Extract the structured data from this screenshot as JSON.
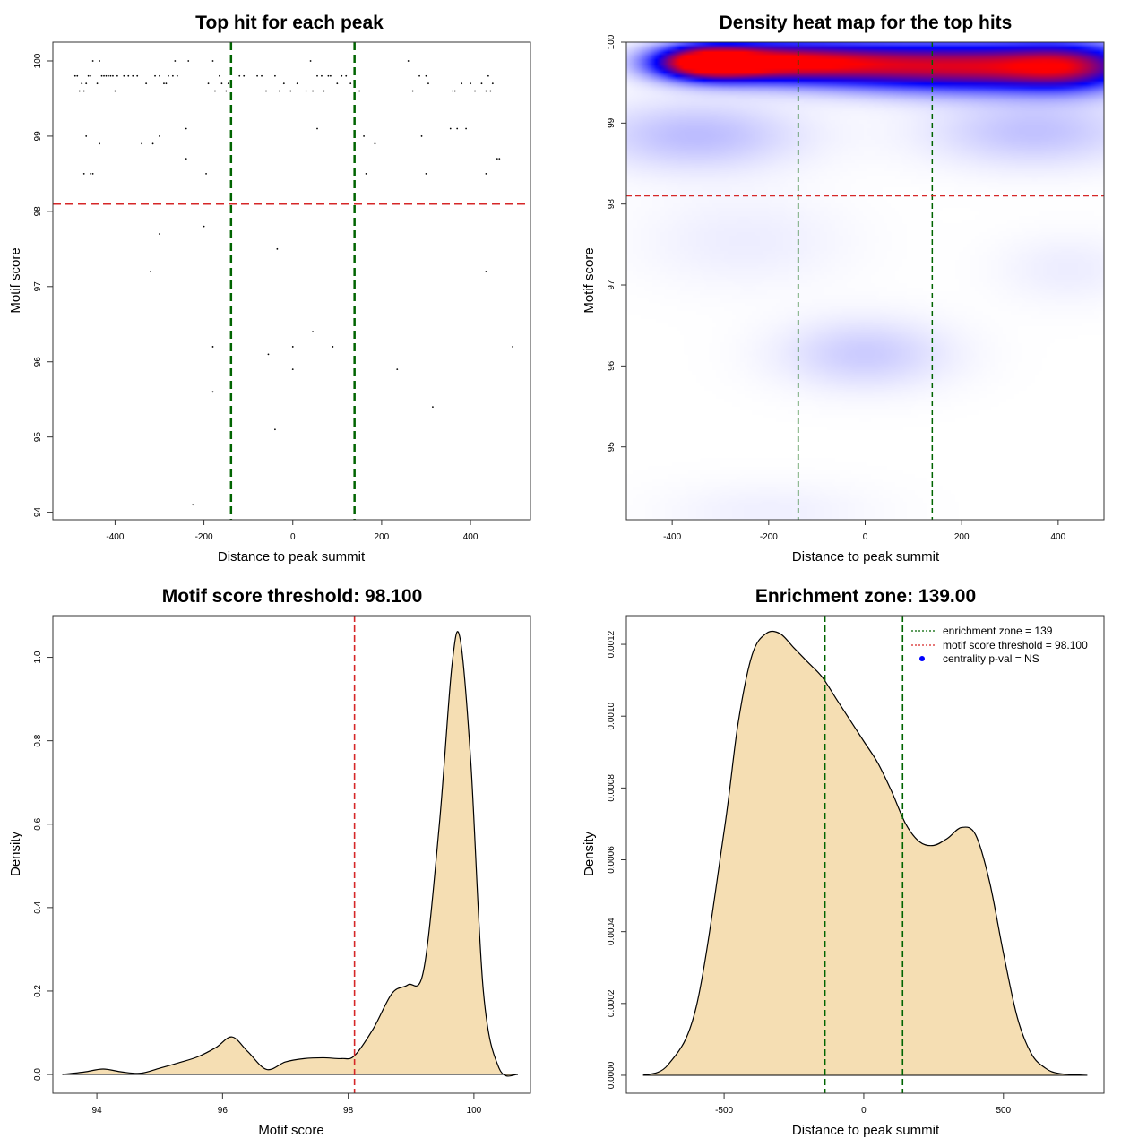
{
  "colors": {
    "threshold": "#d62728",
    "zone": "#006400",
    "fill": "#f5deb3",
    "heat_low": "#ffffff",
    "heat_mid": "#0000ff",
    "heat_high": "#ff0000",
    "pval_dot": "#0000ff"
  },
  "chart_data": [
    {
      "id": "scatter",
      "type": "scatter",
      "title": "Top hit for each peak",
      "xlabel": "Distance to peak summit",
      "ylabel": "Motif score",
      "xlim": [
        -540,
        535
      ],
      "ylim": [
        93.9,
        100.25
      ],
      "xticks": [
        -400,
        -200,
        0,
        200,
        400
      ],
      "yticks": [
        94,
        95,
        96,
        97,
        98,
        99,
        100
      ],
      "zone": [
        -139,
        139
      ],
      "threshold": 98.1,
      "points": [
        [
          -490,
          99.8
        ],
        [
          -485,
          99.8
        ],
        [
          -480,
          99.6
        ],
        [
          -475,
          99.7
        ],
        [
          -470,
          99.6
        ],
        [
          -465,
          99.7
        ],
        [
          -460,
          99.8
        ],
        [
          -455,
          99.8
        ],
        [
          -450,
          100.0
        ],
        [
          -440,
          99.7
        ],
        [
          -435,
          100.0
        ],
        [
          -430,
          99.8
        ],
        [
          -425,
          99.8
        ],
        [
          -420,
          99.8
        ],
        [
          -415,
          99.8
        ],
        [
          -410,
          99.8
        ],
        [
          -405,
          99.8
        ],
        [
          -400,
          99.6
        ],
        [
          -395,
          99.8
        ],
        [
          -380,
          99.8
        ],
        [
          -370,
          99.8
        ],
        [
          -360,
          99.8
        ],
        [
          -350,
          99.8
        ],
        [
          -330,
          99.7
        ],
        [
          -310,
          99.8
        ],
        [
          -300,
          99.8
        ],
        [
          -290,
          99.7
        ],
        [
          -285,
          99.7
        ],
        [
          -280,
          99.8
        ],
        [
          -270,
          99.8
        ],
        [
          -265,
          100.0
        ],
        [
          -260,
          99.8
        ],
        [
          -235,
          100.0
        ],
        [
          -190,
          99.7
        ],
        [
          -180,
          100.0
        ],
        [
          -175,
          99.6
        ],
        [
          -165,
          99.8
        ],
        [
          -160,
          99.7
        ],
        [
          -150,
          99.6
        ],
        [
          -145,
          99.7
        ],
        [
          -120,
          99.8
        ],
        [
          -110,
          99.8
        ],
        [
          -80,
          99.8
        ],
        [
          -70,
          99.8
        ],
        [
          -60,
          99.6
        ],
        [
          -40,
          99.8
        ],
        [
          -30,
          99.6
        ],
        [
          -20,
          99.7
        ],
        [
          -5,
          99.6
        ],
        [
          10,
          99.7
        ],
        [
          30,
          99.6
        ],
        [
          40,
          100.0
        ],
        [
          45,
          99.6
        ],
        [
          55,
          99.8
        ],
        [
          65,
          99.8
        ],
        [
          70,
          99.6
        ],
        [
          80,
          99.8
        ],
        [
          85,
          99.8
        ],
        [
          100,
          99.7
        ],
        [
          110,
          99.8
        ],
        [
          120,
          99.8
        ],
        [
          130,
          99.7
        ],
        [
          150,
          99.6
        ],
        [
          260,
          100.0
        ],
        [
          270,
          99.6
        ],
        [
          285,
          99.8
        ],
        [
          300,
          99.8
        ],
        [
          305,
          99.7
        ],
        [
          360,
          99.6
        ],
        [
          365,
          99.6
        ],
        [
          380,
          99.7
        ],
        [
          400,
          99.7
        ],
        [
          410,
          99.6
        ],
        [
          425,
          99.7
        ],
        [
          435,
          99.6
        ],
        [
          440,
          99.8
        ],
        [
          445,
          99.6
        ],
        [
          450,
          99.7
        ],
        [
          -465,
          99.0
        ],
        [
          -435,
          98.9
        ],
        [
          -340,
          98.9
        ],
        [
          -315,
          98.9
        ],
        [
          -300,
          99.0
        ],
        [
          -240,
          99.1
        ],
        [
          -240,
          98.7
        ],
        [
          55,
          99.1
        ],
        [
          160,
          99.0
        ],
        [
          185,
          98.9
        ],
        [
          290,
          99.0
        ],
        [
          355,
          99.1
        ],
        [
          370,
          99.1
        ],
        [
          390,
          99.1
        ],
        [
          460,
          98.7
        ],
        [
          465,
          98.7
        ],
        [
          -470,
          98.5
        ],
        [
          -455,
          98.5
        ],
        [
          -450,
          98.5
        ],
        [
          -195,
          98.5
        ],
        [
          165,
          98.5
        ],
        [
          300,
          98.5
        ],
        [
          435,
          98.5
        ],
        [
          -200,
          97.8
        ],
        [
          -300,
          97.7
        ],
        [
          -35,
          97.5
        ],
        [
          -320,
          97.2
        ],
        [
          435,
          97.2
        ],
        [
          45,
          96.4
        ],
        [
          -180,
          96.2
        ],
        [
          0,
          96.2
        ],
        [
          90,
          96.2
        ],
        [
          495,
          96.2
        ],
        [
          -55,
          96.1
        ],
        [
          0,
          95.9
        ],
        [
          235,
          95.9
        ],
        [
          -180,
          95.6
        ],
        [
          315,
          95.4
        ],
        [
          -40,
          95.1
        ],
        [
          -225,
          94.1
        ]
      ]
    },
    {
      "id": "heatmap",
      "type": "heatmap",
      "title": "Density heat map for the top hits",
      "xlabel": "Distance to peak summit",
      "ylabel": "Motif score",
      "xlim": [
        -495,
        495
      ],
      "ylim": [
        94.1,
        100.0
      ],
      "xticks": [
        -400,
        -200,
        0,
        200,
        400
      ],
      "yticks": [
        95,
        96,
        97,
        98,
        99,
        100
      ],
      "zone": [
        -139,
        139
      ],
      "threshold": 98.1,
      "blobs": [
        [
          -330,
          99.75,
          75,
          0.14,
          1.0
        ],
        [
          -230,
          99.75,
          110,
          0.16,
          0.55
        ],
        [
          -100,
          99.75,
          130,
          0.16,
          0.5
        ],
        [
          80,
          99.7,
          160,
          0.2,
          0.55
        ],
        [
          300,
          99.7,
          150,
          0.2,
          0.6
        ],
        [
          430,
          99.7,
          90,
          0.2,
          0.5
        ],
        [
          -350,
          98.85,
          150,
          0.3,
          0.13
        ],
        [
          350,
          98.9,
          150,
          0.3,
          0.12
        ],
        [
          0,
          96.15,
          120,
          0.3,
          0.1
        ],
        [
          -250,
          97.55,
          150,
          0.4,
          0.035
        ],
        [
          420,
          97.2,
          100,
          0.3,
          0.035
        ],
        [
          -200,
          94.2,
          150,
          0.25,
          0.03
        ]
      ]
    },
    {
      "id": "score-density",
      "type": "area",
      "title": "Motif score threshold: 98.100",
      "xlabel": "Motif score",
      "ylabel": "Density",
      "xlim": [
        93.3,
        100.9
      ],
      "ylim": [
        -0.045,
        1.1
      ],
      "xticks": [
        94,
        96,
        98,
        100
      ],
      "yticks": [
        0.0,
        0.2,
        0.4,
        0.6,
        0.8,
        1.0
      ],
      "threshold": 98.1,
      "x": [
        93.45,
        93.8,
        94.1,
        94.4,
        94.7,
        95.0,
        95.3,
        95.6,
        95.9,
        96.15,
        96.4,
        96.7,
        97.0,
        97.3,
        97.6,
        97.9,
        98.1,
        98.4,
        98.7,
        98.95,
        99.2,
        99.45,
        99.65,
        99.78,
        99.95,
        100.15,
        100.4,
        100.7
      ],
      "values": [
        0.0,
        0.006,
        0.013,
        0.006,
        0.003,
        0.015,
        0.028,
        0.042,
        0.065,
        0.09,
        0.055,
        0.012,
        0.03,
        0.038,
        0.04,
        0.038,
        0.045,
        0.11,
        0.195,
        0.215,
        0.25,
        0.6,
        0.98,
        1.045,
        0.75,
        0.2,
        0.015,
        0.0
      ]
    },
    {
      "id": "distance-density",
      "type": "area",
      "title": "Enrichment zone: 139.00",
      "xlabel": "Distance to peak summit",
      "ylabel": "Density",
      "xlim": [
        -850,
        860
      ],
      "ylim": [
        -5e-05,
        0.00128
      ],
      "xticks": [
        -500,
        0,
        500
      ],
      "ytick_labels": [
        "0.0000",
        "0.0002",
        "0.0004",
        "0.0006",
        "0.0008",
        "0.0010",
        "0.0012"
      ],
      "yticks": [
        0.0,
        0.0002,
        0.0004,
        0.0006,
        0.0008,
        0.001,
        0.0012
      ],
      "zone": [
        -139,
        139
      ],
      "x": [
        -790,
        -700,
        -600,
        -500,
        -450,
        -400,
        -350,
        -300,
        -250,
        -200,
        -150,
        -100,
        -50,
        0,
        50,
        100,
        150,
        200,
        250,
        300,
        350,
        400,
        450,
        500,
        550,
        600,
        650,
        700,
        800
      ],
      "values": [
        0.0,
        3e-05,
        0.00019,
        0.00068,
        0.00098,
        0.00117,
        0.00123,
        0.00123,
        0.00119,
        0.00115,
        0.00111,
        0.00105,
        0.00099,
        0.00093,
        0.00087,
        0.00079,
        0.0007,
        0.00065,
        0.00064,
        0.00066,
        0.00069,
        0.00067,
        0.00054,
        0.00034,
        0.00016,
        6e-05,
        2e-05,
        5e-06,
        0.0
      ],
      "legend": [
        {
          "label": "enrichment zone = 139",
          "kind": "dotted-line",
          "color": "#006400"
        },
        {
          "label": "motif score threshold = 98.100",
          "kind": "dotted-line",
          "color": "#d62728"
        },
        {
          "label": "centrality p-val = NS",
          "kind": "dot",
          "color": "#0000ff"
        }
      ],
      "legend_position": "top-right"
    }
  ]
}
